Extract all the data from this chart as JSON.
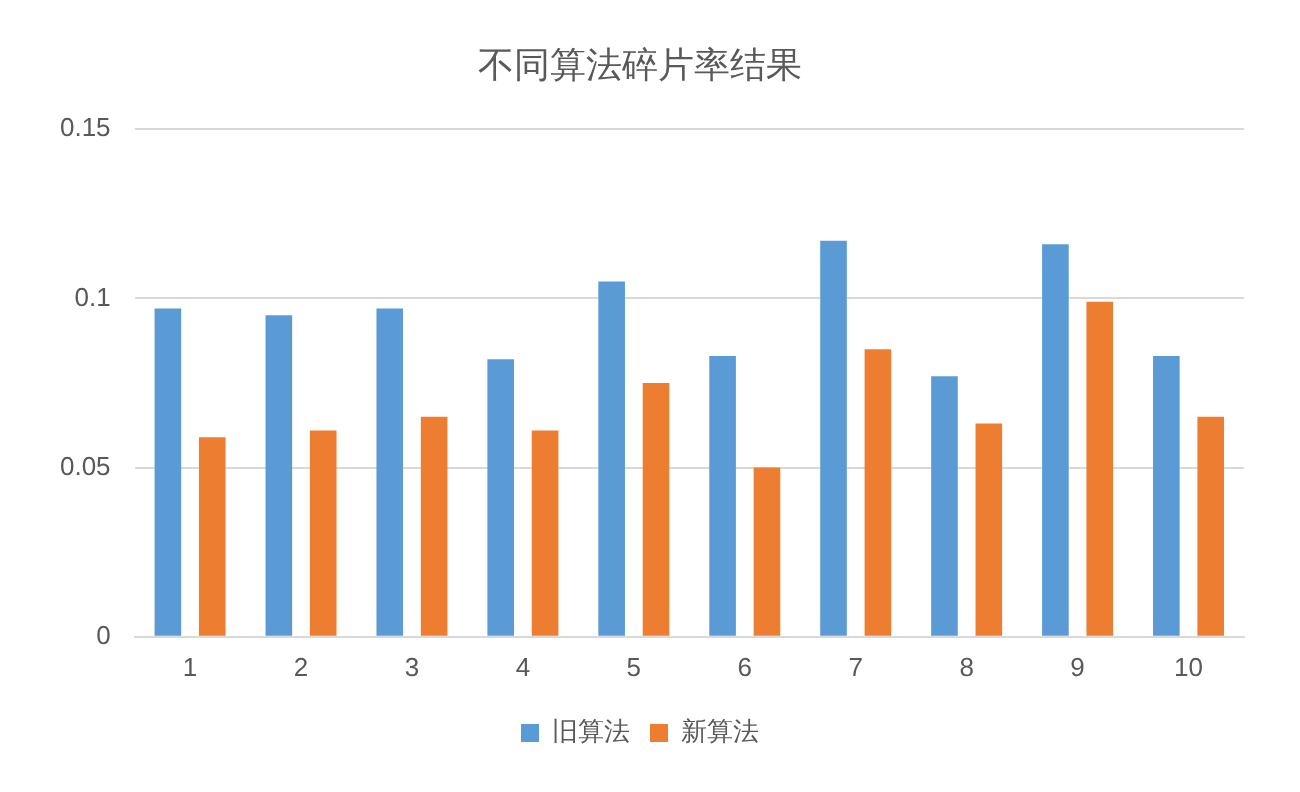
{
  "chart_data": {
    "type": "bar",
    "title": "不同算法碎片率结果",
    "categories": [
      "1",
      "2",
      "3",
      "4",
      "5",
      "6",
      "7",
      "8",
      "9",
      "10"
    ],
    "series": [
      {
        "name": "旧算法",
        "color": "#5b9bd5",
        "values": [
          0.097,
          0.095,
          0.097,
          0.082,
          0.105,
          0.083,
          0.117,
          0.077,
          0.116,
          0.083
        ]
      },
      {
        "name": "新算法",
        "color": "#ed7d31",
        "values": [
          0.059,
          0.061,
          0.065,
          0.061,
          0.075,
          0.05,
          0.085,
          0.063,
          0.099,
          0.065
        ]
      }
    ],
    "ylim": [
      0,
      0.15
    ],
    "yticks": [
      0,
      0.05,
      {
        "value": 0.1,
        "label": "0.1"
      },
      0.15
    ],
    "grid": "y",
    "legend": "bottom"
  }
}
